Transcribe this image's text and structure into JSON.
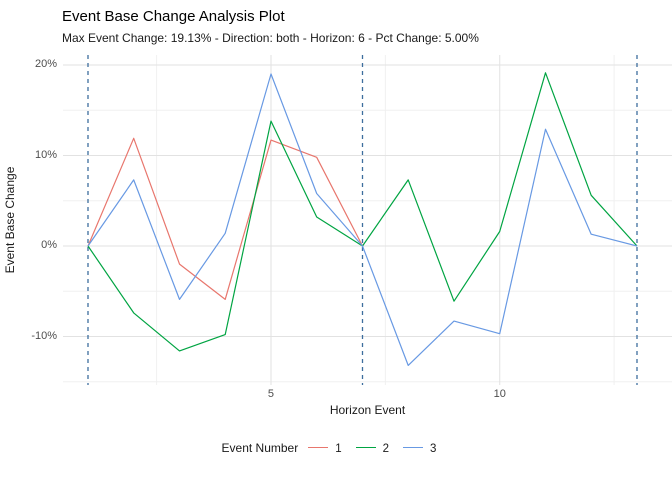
{
  "chart_data": {
    "type": "line",
    "title": "Event Base Change Analysis Plot",
    "subtitle": "Max Event Change: 19.13% - Direction: both - Horizon: 6 - Pct Change: 5.00%",
    "xlabel": "Horizon Event",
    "ylabel": "Event Base Change",
    "legend_title": "Event Number",
    "legend_position": "bottom",
    "grid": true,
    "xlim": [
      0.45,
      13.77
    ],
    "ylim": [
      -15.36,
      21.1
    ],
    "series": [
      {
        "name": "1",
        "color": "#E8766D",
        "x": [
          1,
          2,
          3,
          4,
          5,
          6,
          7
        ],
        "values": [
          0,
          11.9,
          -2.0,
          -5.9,
          11.7,
          9.8,
          0
        ]
      },
      {
        "name": "2",
        "color": "#00A442",
        "x": [
          1,
          2,
          3,
          4,
          5,
          6,
          7,
          8,
          9,
          10,
          11,
          12,
          13
        ],
        "values": [
          0,
          -7.4,
          -11.6,
          -9.8,
          13.8,
          3.2,
          0,
          7.3,
          -6.1,
          1.6,
          19.13,
          5.6,
          0
        ]
      },
      {
        "name": "3",
        "color": "#6899E3",
        "x": [
          1,
          2,
          3,
          4,
          5,
          6,
          7,
          8,
          9,
          10,
          11,
          12,
          13
        ],
        "values": [
          0,
          7.3,
          -5.9,
          1.4,
          19.0,
          5.8,
          0,
          -13.2,
          -8.3,
          -9.7,
          12.9,
          1.3,
          0
        ]
      }
    ],
    "vlines": {
      "x": [
        1,
        7,
        13
      ],
      "color": "#3D6E9E",
      "style": "dashed"
    },
    "yticks": [
      {
        "value": 20,
        "label": "20%"
      },
      {
        "value": 10,
        "label": "10%"
      },
      {
        "value": 0,
        "label": "0%"
      },
      {
        "value": -10,
        "label": "-10%"
      }
    ],
    "xticks": [
      {
        "value": 5,
        "label": "5"
      },
      {
        "value": 10,
        "label": "10"
      }
    ],
    "minor_yticks": [
      15,
      5,
      -5,
      -15
    ],
    "minor_xticks": [
      2.5,
      7.5,
      12.5
    ],
    "colors": {
      "major_grid": "#E2E2E2",
      "minor_grid": "#F0F0F0",
      "tick_text": "#4d4d4d"
    }
  }
}
